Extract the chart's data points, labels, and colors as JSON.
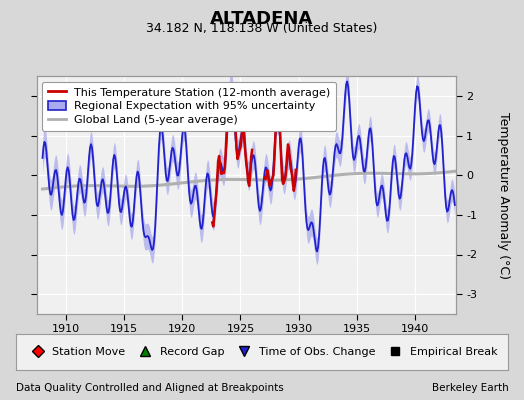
{
  "title": "ALTADENA",
  "subtitle": "34.182 N, 118.138 W (United States)",
  "xlabel_bottom": "Data Quality Controlled and Aligned at Breakpoints",
  "xlabel_right": "Berkeley Earth",
  "ylabel": "Temperature Anomaly (°C)",
  "xlim": [
    1907.5,
    1943.5
  ],
  "ylim": [
    -3.5,
    2.5
  ],
  "yticks": [
    -3,
    -2,
    -1,
    0,
    1,
    2
  ],
  "xticks": [
    1910,
    1915,
    1920,
    1925,
    1930,
    1935,
    1940
  ],
  "bg_color": "#d8d8d8",
  "plot_bg_color": "#f0f0f0",
  "grid_color": "#ffffff",
  "blue_line_color": "#2222cc",
  "blue_fill_color": "#aaaaee",
  "red_line_color": "#cc0000",
  "gray_line_color": "#b0b0b0",
  "title_fontsize": 13,
  "subtitle_fontsize": 9,
  "legend_fontsize": 8,
  "tick_fontsize": 8,
  "label_fontsize": 7.5
}
